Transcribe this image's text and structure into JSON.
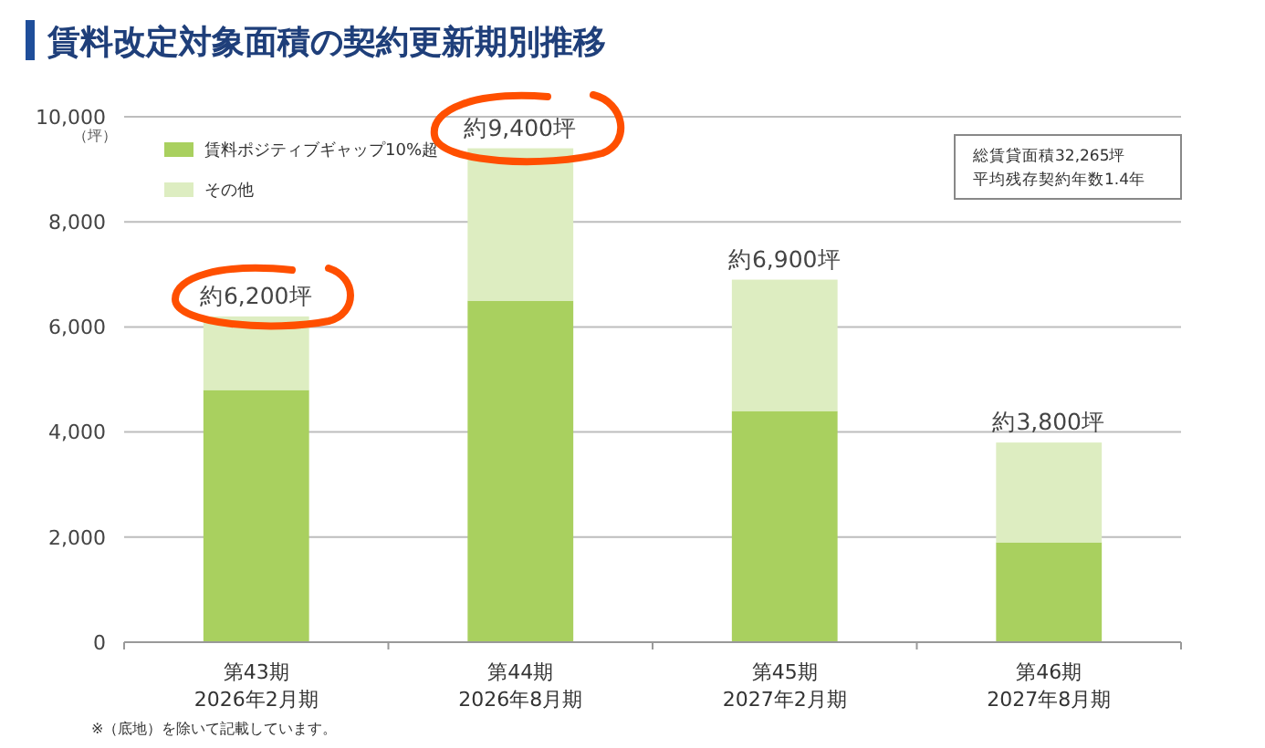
{
  "chart_data": {
    "type": "bar",
    "title": "賃料改定対象面積の契約更新期別推移",
    "ylabel": "（坪）",
    "categories": [
      "第43期\n2026年2月期",
      "第44期\n2026年8月期",
      "第45期\n2027年2月期",
      "第46期\n2027年8月期"
    ],
    "series": [
      {
        "name": "賃料ポジティブギャップ10%超",
        "color": "#a9d05f",
        "values": [
          4800,
          6500,
          4400,
          1900
        ]
      },
      {
        "name": "その他",
        "color": "#ddedc1",
        "values": [
          1400,
          2900,
          2500,
          1900
        ]
      }
    ],
    "stacked": true,
    "totals": [
      "約6,200坪",
      "約9,400坪",
      "約6,900坪",
      "約3,800坪"
    ],
    "ylim": [
      0,
      10000
    ],
    "yticks": [
      {
        "value": 0,
        "label": "0"
      },
      {
        "value": 2000,
        "label": "2,000"
      },
      {
        "value": 4000,
        "label": "4,000"
      },
      {
        "value": 6000,
        "label": "6,000"
      },
      {
        "value": 8000,
        "label": "8,000"
      },
      {
        "value": 10000,
        "label": "10,000"
      }
    ],
    "grid": "y",
    "legend": "top left",
    "annotations": [
      "総賃貸面積32,265坪",
      "平均残存契約年数1.4年",
      "※（底地）を除いて記載しています。"
    ]
  }
}
